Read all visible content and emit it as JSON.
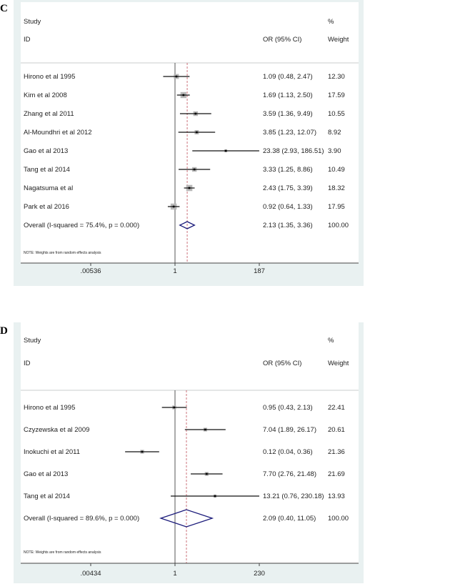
{
  "chart_data": [
    {
      "type": "forest",
      "panel_label": "C",
      "header": {
        "study": "Study",
        "id": "ID",
        "effect": "OR (95% CI)",
        "pct": "%",
        "weight": "Weight"
      },
      "x_scale": "log",
      "x_ticks": [
        ".00536",
        "1",
        "187"
      ],
      "xlim": [
        0.00536,
        187
      ],
      "null_line": 1,
      "pooled_line": 2.13,
      "studies": [
        {
          "label": "Hirono et al 1995",
          "or": 1.09,
          "lo": 0.48,
          "hi": 2.47,
          "ci_text": "1.09 (0.48, 2.47)",
          "weight": "12.30"
        },
        {
          "label": "Kim et al 2008",
          "or": 1.69,
          "lo": 1.13,
          "hi": 2.5,
          "ci_text": "1.69 (1.13, 2.50)",
          "weight": "17.59"
        },
        {
          "label": "Zhang et al 2011",
          "or": 3.59,
          "lo": 1.36,
          "hi": 9.49,
          "ci_text": "3.59 (1.36, 9.49)",
          "weight": "10.55"
        },
        {
          "label": "Al-Moundhri et al 2012",
          "or": 3.85,
          "lo": 1.23,
          "hi": 12.07,
          "ci_text": "3.85 (1.23, 12.07)",
          "weight": "8.92"
        },
        {
          "label": "Gao et al 2013",
          "or": 23.38,
          "lo": 2.93,
          "hi": 186.51,
          "ci_text": "23.38 (2.93, 186.51)",
          "weight": "3.90"
        },
        {
          "label": "Tang et al 2014",
          "or": 3.33,
          "lo": 1.25,
          "hi": 8.86,
          "ci_text": "3.33 (1.25, 8.86)",
          "weight": "10.49"
        },
        {
          "label": "Nagatsuma et al",
          "or": 2.43,
          "lo": 1.75,
          "hi": 3.39,
          "ci_text": "2.43 (1.75, 3.39)",
          "weight": "18.32"
        },
        {
          "label": "Park et al 2016",
          "or": 0.92,
          "lo": 0.64,
          "hi": 1.33,
          "ci_text": "0.92 (0.64, 1.33)",
          "weight": "17.95"
        }
      ],
      "overall": {
        "label": "Overall  (I-squared = 75.4%, p = 0.000)",
        "or": 2.13,
        "lo": 1.35,
        "hi": 3.36,
        "ci_text": "2.13 (1.35, 3.36)",
        "weight": "100.00"
      },
      "note": "NOTE: Weights are from random effects analysis"
    },
    {
      "type": "forest",
      "panel_label": "D",
      "header": {
        "study": "Study",
        "id": "ID",
        "effect": "OR (95% CI)",
        "pct": "%",
        "weight": "Weight"
      },
      "x_scale": "log",
      "x_ticks": [
        ".00434",
        "1",
        "230"
      ],
      "xlim": [
        0.00434,
        230
      ],
      "null_line": 1,
      "pooled_line": 2.09,
      "studies": [
        {
          "label": "Hirono et al 1995",
          "or": 0.95,
          "lo": 0.43,
          "hi": 2.13,
          "ci_text": "0.95 (0.43, 2.13)",
          "weight": "22.41"
        },
        {
          "label": "Czyzewska et al 2009",
          "or": 7.04,
          "lo": 1.89,
          "hi": 26.17,
          "ci_text": "7.04 (1.89, 26.17)",
          "weight": "20.61"
        },
        {
          "label": "Inokuchi et al 2011",
          "or": 0.12,
          "lo": 0.04,
          "hi": 0.36,
          "ci_text": "0.12 (0.04, 0.36)",
          "weight": "21.36"
        },
        {
          "label": "Gao et al 2013",
          "or": 7.7,
          "lo": 2.76,
          "hi": 21.48,
          "ci_text": "7.70 (2.76, 21.48)",
          "weight": "21.69"
        },
        {
          "label": "Tang et al 2014",
          "or": 13.21,
          "lo": 0.76,
          "hi": 230.18,
          "ci_text": "13.21 (0.76, 230.18)",
          "weight": "13.93"
        }
      ],
      "overall": {
        "label": "Overall  (I-squared = 89.6%, p = 0.000)",
        "or": 2.09,
        "lo": 0.4,
        "hi": 11.05,
        "ci_text": "2.09 (0.40, 11.05)",
        "weight": "100.00"
      },
      "note": "NOTE: Weights are from random effects analysis"
    }
  ],
  "colors": {
    "frame_bg": "#e9f1f1",
    "plot_bg": "#ffffff",
    "pooled_line": "#c0505a",
    "diamond": "#1a1a7a",
    "square": "#b8b8b8"
  }
}
